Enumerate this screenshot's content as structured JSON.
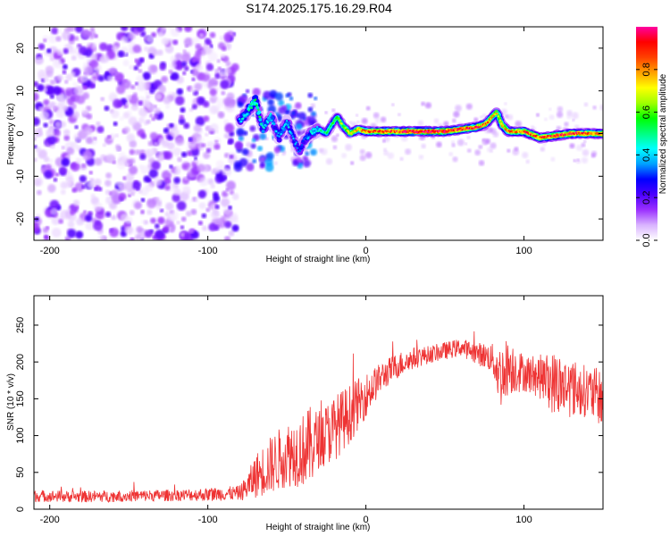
{
  "title": "S174.2025.175.16.29.R04",
  "chart_data": [
    {
      "type": "heatmap",
      "xlabel": "Height of straight line (km)",
      "ylabel": "Frequency (Hz)",
      "xlim": [
        -210,
        150
      ],
      "ylim": [
        -25,
        25
      ],
      "xticks": [
        -200,
        -100,
        0,
        100
      ],
      "yticks": [
        -20,
        -10,
        0,
        10,
        20
      ],
      "colorbar": {
        "label": "Normalized spectral amplitude",
        "range": [
          0,
          1
        ],
        "ticks": [
          "0.0",
          "0.2",
          "0.4",
          "0.6",
          "0.8"
        ],
        "colors": [
          "#ffffff",
          "#d9b3ff",
          "#9b30ff",
          "#4b00ff",
          "#0000ff",
          "#00a0ff",
          "#00ffff",
          "#00ff80",
          "#00ff00",
          "#a0ff00",
          "#ffff00",
          "#ffa000",
          "#ff4000",
          "#ff0000",
          "#ff00a0"
        ]
      },
      "ridge": {
        "x": [
          -80,
          -75,
          -70,
          -65,
          -60,
          -55,
          -50,
          -45,
          -42,
          -38,
          -35,
          -30,
          -25,
          -20,
          -18,
          -15,
          -10,
          -5,
          0,
          10,
          20,
          30,
          40,
          50,
          60,
          70,
          75,
          78,
          80,
          83,
          86,
          90,
          100,
          110,
          120,
          130,
          140,
          150
        ],
        "y": [
          3,
          5,
          8,
          1,
          4,
          -1,
          3,
          -2,
          -4,
          -1,
          0,
          1,
          0,
          3,
          4,
          2,
          0,
          1,
          0.5,
          0.5,
          0.5,
          0.5,
          0.5,
          0.5,
          1,
          1.5,
          2,
          3,
          4,
          5,
          2,
          0.5,
          0.5,
          -1,
          -0.5,
          0,
          0,
          0
        ],
        "amplitude": [
          0.4,
          0.45,
          0.5,
          0.45,
          0.4,
          0.35,
          0.4,
          0.35,
          0.3,
          0.35,
          0.4,
          0.45,
          0.5,
          0.55,
          0.6,
          0.6,
          0.7,
          0.75,
          0.8,
          0.85,
          0.9,
          0.95,
          0.95,
          0.95,
          0.9,
          0.9,
          0.85,
          0.8,
          0.75,
          0.7,
          0.75,
          0.8,
          0.85,
          0.85,
          0.9,
          0.9,
          0.85,
          0.85
        ]
      }
    },
    {
      "type": "line",
      "xlabel": "Height of straight line (km)",
      "ylabel": "SNR (10 * v/v)",
      "xlim": [
        -210,
        150
      ],
      "ylim": [
        0,
        290
      ],
      "xticks": [
        -200,
        -100,
        0,
        100
      ],
      "yticks": [
        0,
        50,
        100,
        150,
        200,
        250
      ],
      "color": "#ee3333",
      "series": [
        {
          "x": [
            -210,
            -180,
            -150,
            -120,
            -100,
            -80,
            -75,
            -70,
            -60,
            -50,
            -40,
            -35,
            -30,
            -20,
            -10,
            0,
            10,
            20,
            30,
            40,
            50,
            60,
            70,
            80,
            85,
            90,
            100,
            110,
            120,
            130,
            140,
            150
          ],
          "y": [
            18,
            17,
            18,
            19,
            20,
            22,
            30,
            45,
            60,
            75,
            80,
            85,
            95,
            110,
            130,
            155,
            180,
            195,
            205,
            210,
            215,
            220,
            212,
            205,
            180,
            195,
            185,
            180,
            170,
            165,
            160,
            150
          ],
          "noise": [
            8,
            8,
            8,
            8,
            9,
            10,
            18,
            30,
            40,
            45,
            50,
            55,
            40,
            45,
            40,
            30,
            20,
            18,
            15,
            12,
            12,
            12,
            15,
            20,
            45,
            40,
            25,
            30,
            45,
            40,
            35,
            40
          ]
        }
      ]
    }
  ]
}
